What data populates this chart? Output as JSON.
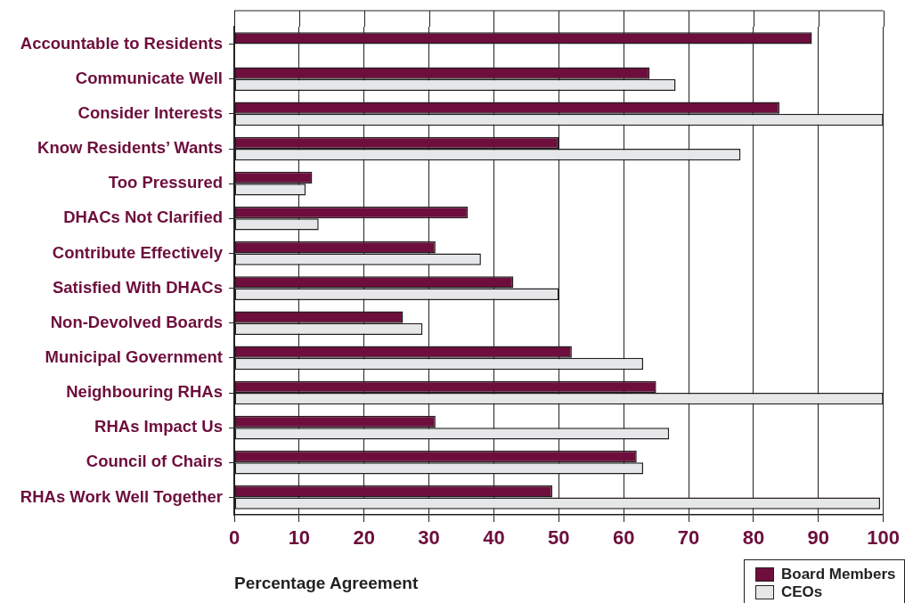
{
  "chart_data": {
    "type": "bar",
    "orientation": "horizontal",
    "categories": [
      "Accountable to Residents",
      "Communicate Well",
      "Consider Interests",
      "Know Residents’ Wants",
      "Too Pressured",
      "DHACs Not Clarified",
      "Contribute Effectively",
      "Satisfied With DHACs",
      "Non-Devolved Boards",
      "Municipal Government",
      "Neighbouring RHAs",
      "RHAs Impact Us",
      "Council of Chairs",
      "RHAs Work Well Together"
    ],
    "series": [
      {
        "name": "Board Members",
        "color": "#6d0e3c",
        "values": [
          89,
          64,
          84,
          50,
          12,
          36,
          31,
          43,
          26,
          52,
          65,
          31,
          62,
          49
        ]
      },
      {
        "name": "CEOs",
        "color": "#e6e7e8",
        "values": [
          null,
          68,
          100,
          78,
          11,
          13,
          38,
          50,
          29,
          63,
          100,
          67,
          63,
          99.5
        ]
      }
    ],
    "xlim": [
      0,
      100
    ],
    "xticks": [
      0,
      10,
      20,
      30,
      40,
      50,
      60,
      70,
      80,
      90,
      100
    ],
    "xlabel": "Percentage Agreement",
    "grid": "x",
    "legend": "bottom right"
  }
}
